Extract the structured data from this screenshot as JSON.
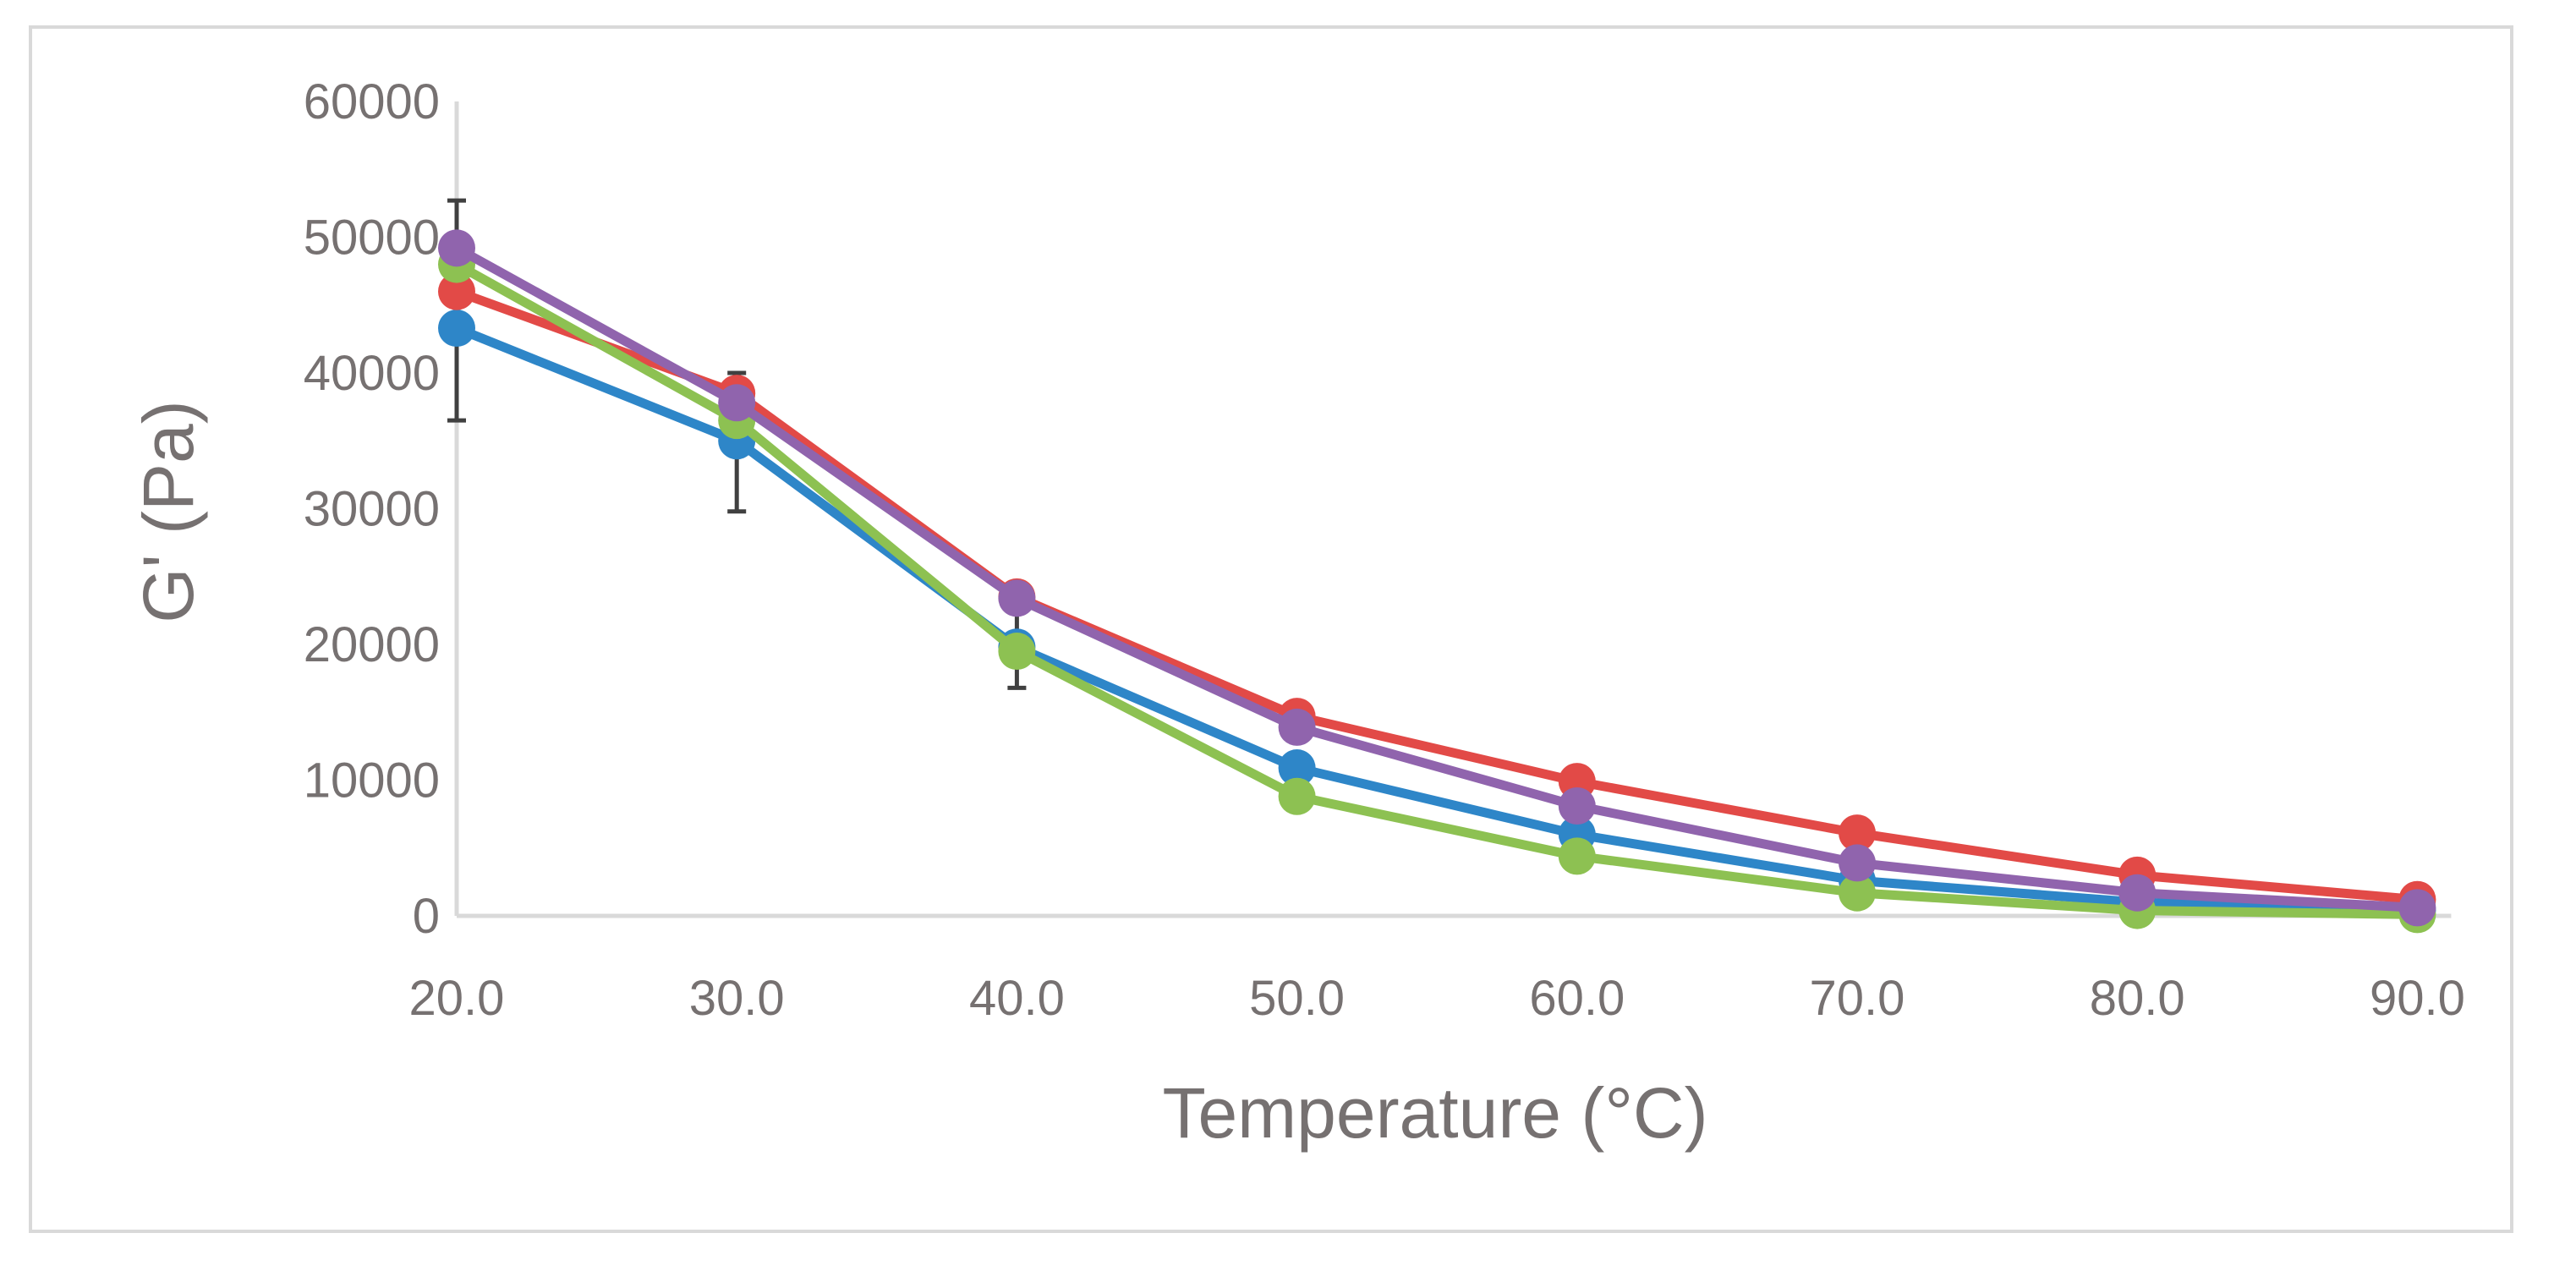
{
  "chart_data": {
    "type": "line",
    "title": "",
    "xlabel": "Temperature (°C)",
    "ylabel": "G' (Pa)",
    "x": [
      "20.0",
      "30.0",
      "40.0",
      "50.0",
      "60.0",
      "70.0",
      "80.0",
      "90.0"
    ],
    "y_ticks": [
      "0",
      "10000",
      "20000",
      "30000",
      "40000",
      "50000",
      "60000"
    ],
    "ylim": [
      0,
      60000
    ],
    "grid": false,
    "legend": "none",
    "series": [
      {
        "color": "#2e86c8",
        "values": [
          43300,
          35000,
          19800,
          10900,
          6000,
          2600,
          1000,
          400
        ]
      },
      {
        "color": "#e24a47",
        "values": [
          46000,
          38500,
          23500,
          14700,
          9900,
          6100,
          3000,
          1200
        ]
      },
      {
        "color": "#8dc152",
        "values": [
          48000,
          36500,
          19500,
          8800,
          4400,
          1700,
          400,
          100
        ]
      },
      {
        "color": "#9064ad",
        "values": [
          49200,
          37800,
          23400,
          13900,
          8100,
          3900,
          1700,
          600
        ]
      }
    ],
    "error_bars": [
      {
        "x_index": 0,
        "low": 36500,
        "high": 52700
      },
      {
        "x_index": 1,
        "low": 29800,
        "high": 40000
      },
      {
        "x_index": 2,
        "low": 16800,
        "high": 22500
      }
    ],
    "axis_color": "#d9d9d9",
    "errorbar_color": "#404040"
  }
}
